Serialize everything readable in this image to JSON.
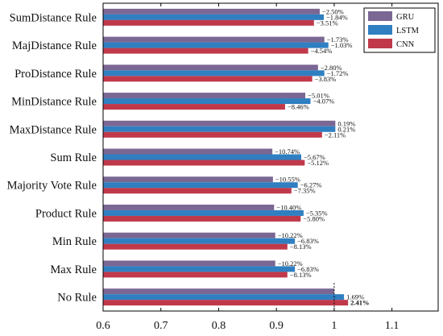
{
  "chart_data": {
    "type": "bar",
    "orientation": "horizontal",
    "categories": [
      "SumDistance Rule",
      "MajDistance Rule",
      "ProDistance Rule",
      "MinDistance Rule",
      "MaxDistance Rule",
      "Sum Rule",
      "Majority Vote Rule",
      "Product Rule",
      "Min Rule",
      "Max Rule",
      "No Rule"
    ],
    "series": [
      {
        "name": "GRU",
        "color": "#7b6794",
        "values": [
          0.975,
          0.983,
          0.972,
          0.95,
          1.002,
          0.893,
          0.894,
          0.896,
          0.898,
          0.898,
          1.0
        ],
        "labels": [
          "−2.50%",
          "−1.73%",
          "−2.80%",
          "−5.01%",
          "0.19%",
          "−10.74%",
          "−10.55%",
          "−10.40%",
          "−10.22%",
          "−10.22%",
          ""
        ]
      },
      {
        "name": "LSTM",
        "color": "#2f7fc1",
        "values": [
          0.982,
          0.99,
          0.983,
          0.959,
          1.002,
          0.943,
          0.937,
          0.947,
          0.932,
          0.932,
          1.017
        ],
        "labels": [
          "−1.84%",
          "−1.03%",
          "−1.72%",
          "−4.07%",
          "0.21%",
          "−5.67%",
          "−6.27%",
          "−5.35%",
          "−6.83%",
          "−6.83%",
          "1.69%"
        ]
      },
      {
        "name": "CNN",
        "color": "#c0394b",
        "values": [
          0.965,
          0.955,
          0.962,
          0.915,
          0.979,
          0.949,
          0.926,
          0.942,
          0.919,
          0.919,
          1.024
        ],
        "labels": [
          "−3.51%",
          "−4.54%",
          "−3.83%",
          "−8.46%",
          "−2.11%",
          "−5.12%",
          "−7.35%",
          "−5.80%",
          "−8.13%",
          "−8.13%",
          "2.41%"
        ]
      }
    ],
    "bold_labels": [
      "2.41%"
    ],
    "xlim": [
      0.6,
      1.18
    ],
    "xticks": [
      "0.6",
      "0.7",
      "0.8",
      "0.9",
      "1",
      "1.1"
    ],
    "xtick_values": [
      0.6,
      0.7,
      0.8,
      0.9,
      1.0,
      1.1
    ],
    "reference_line": 1.0,
    "legend_position": "top-right",
    "grid": false
  }
}
